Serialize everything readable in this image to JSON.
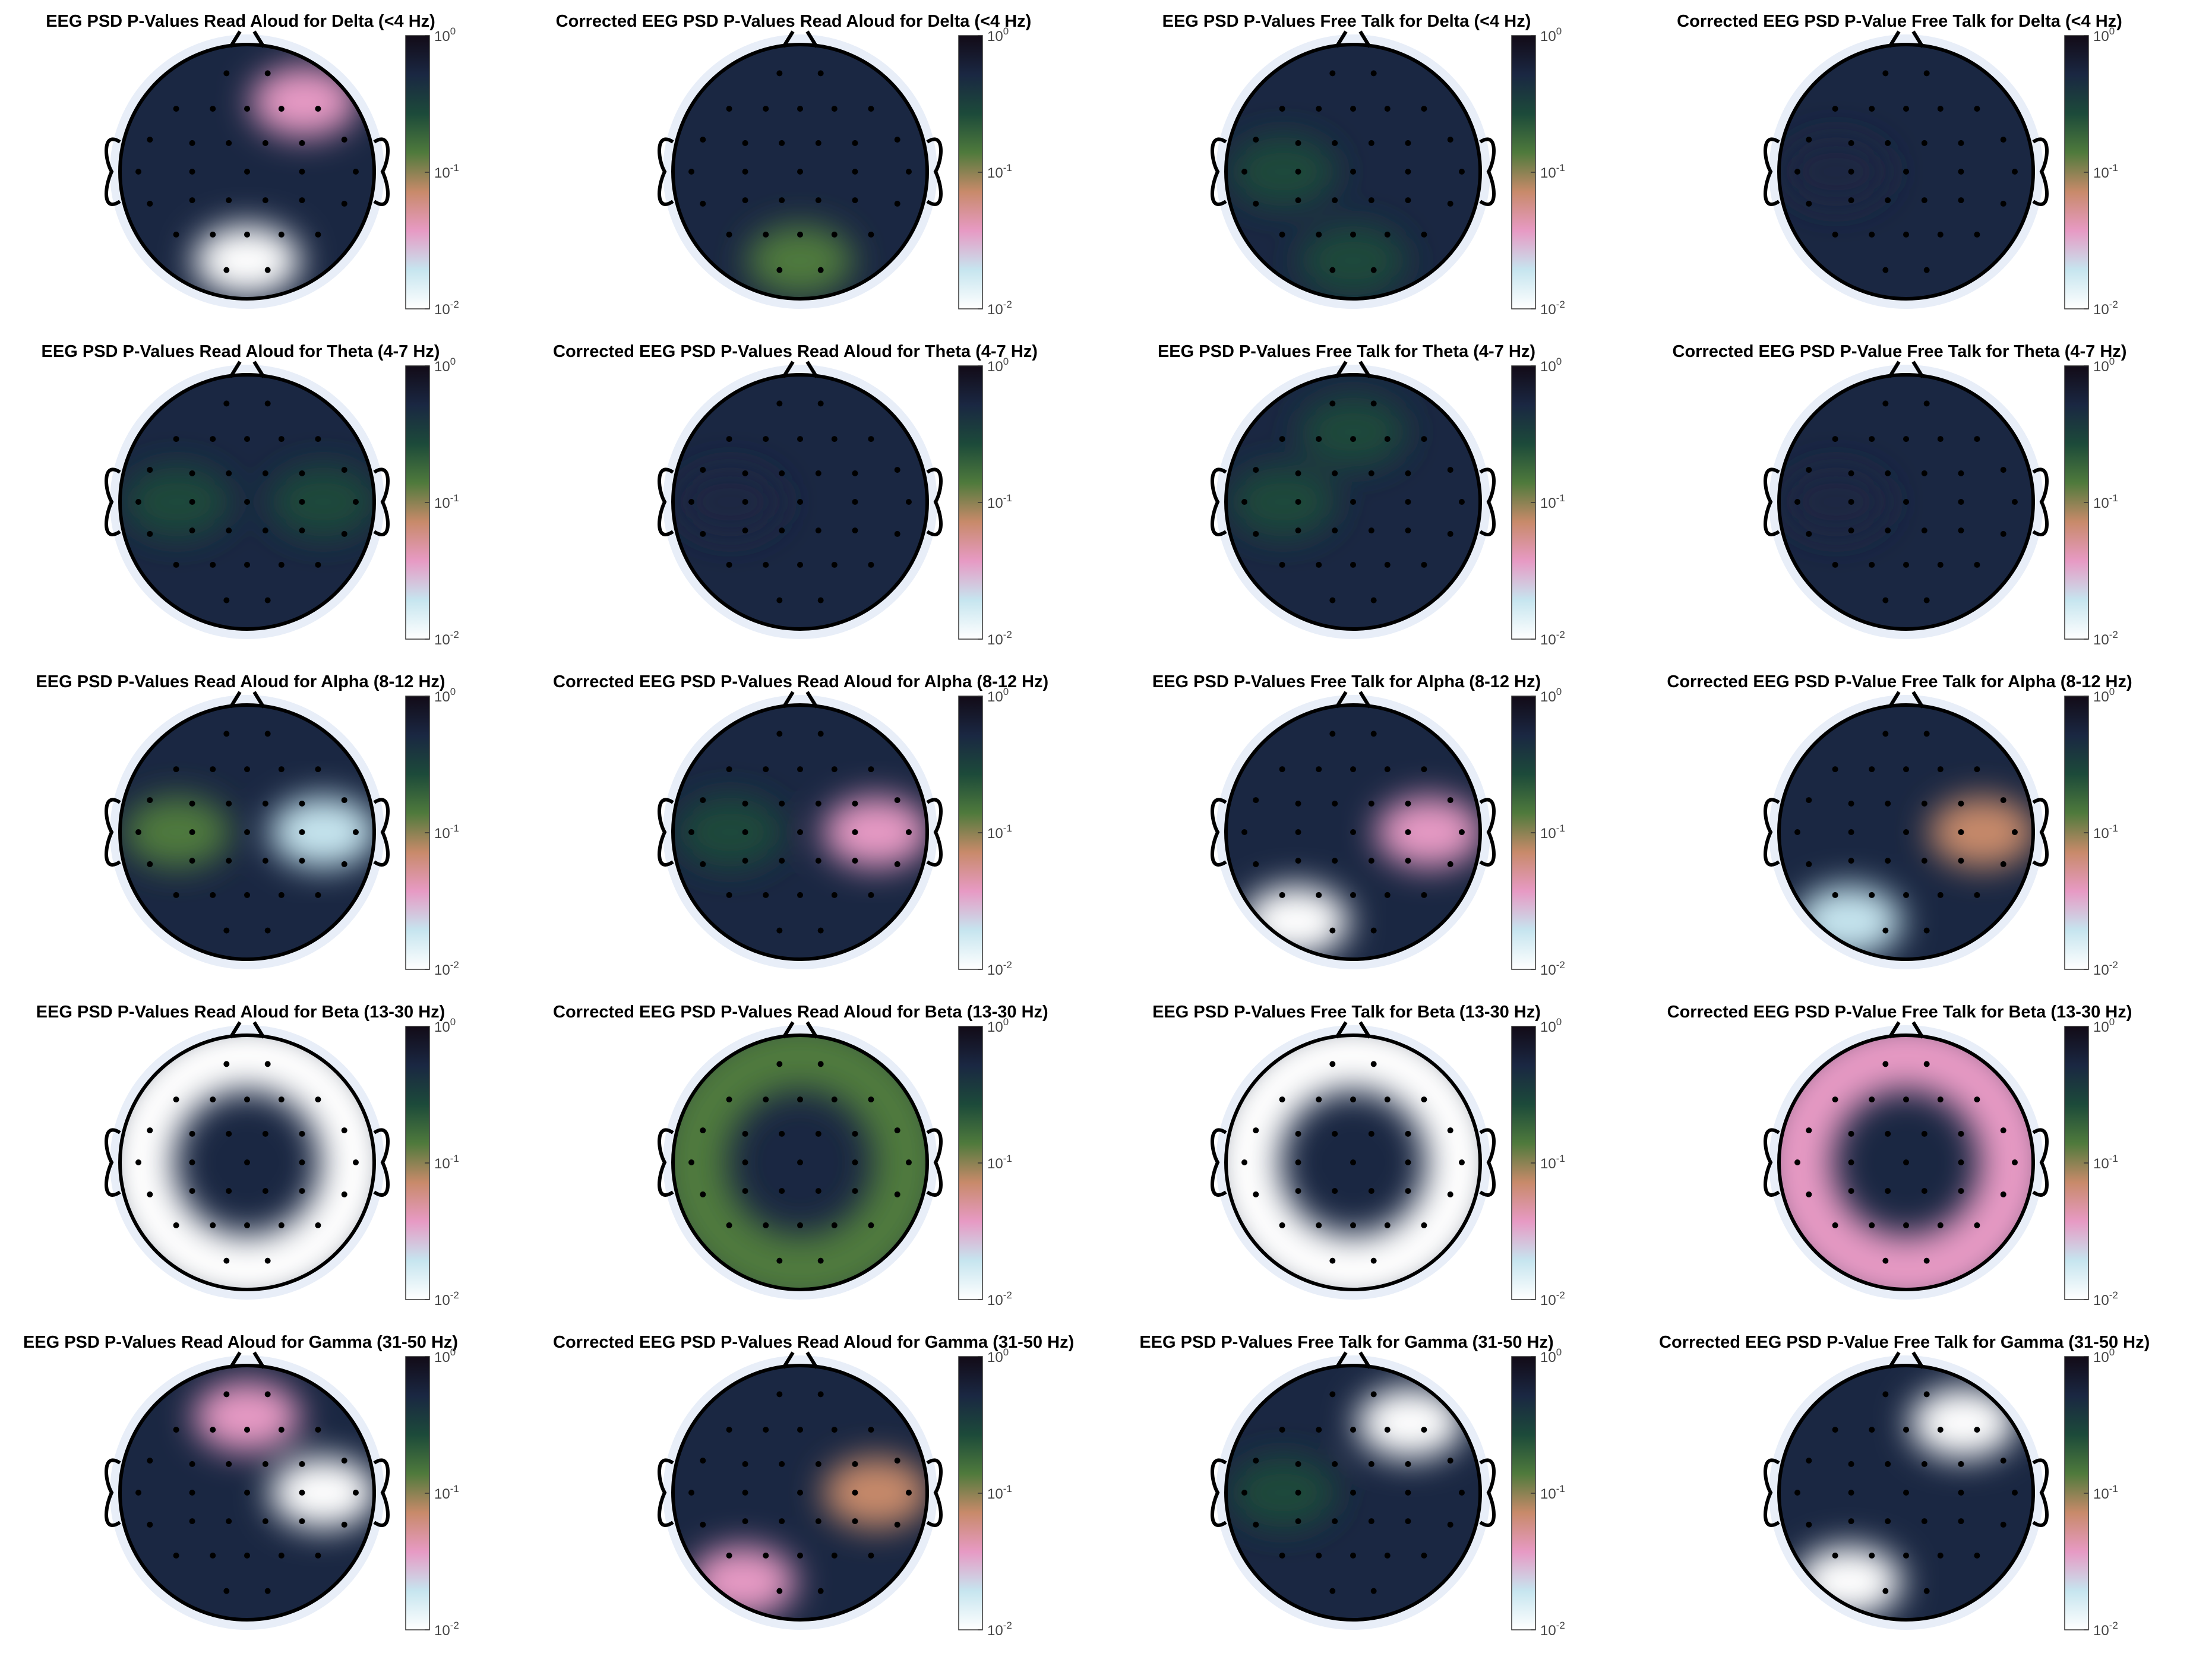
{
  "figure": {
    "colormap": [
      "#ffffff",
      "#c6e5ef",
      "#e79ac4",
      "#c88a6a",
      "#4f7a3c",
      "#1c4a3a",
      "#1a2742",
      "#120b17"
    ],
    "head_outline_color": "#000000",
    "electrode_color": "#000000",
    "colorbar": {
      "scale": "log",
      "range": [
        0.01,
        1
      ],
      "ticks": [
        {
          "base": "10",
          "exp": "0"
        },
        {
          "base": "10",
          "exp": "-1"
        },
        {
          "base": "10",
          "exp": "-2"
        }
      ]
    }
  },
  "chart_data": [
    {
      "type": "heatmap",
      "title": "EEG PSD P-Values Read Aloud for Delta (<4 Hz)",
      "blobs": [
        {
          "pos": "bottom-center",
          "level": 0.01
        },
        {
          "pos": "top-right",
          "level": 0.03
        }
      ]
    },
    {
      "type": "heatmap",
      "title": "Corrected EEG PSD P-Values Read Aloud for Delta (<4 Hz)",
      "blobs": [
        {
          "pos": "bottom-center",
          "level": 0.12
        }
      ]
    },
    {
      "type": "heatmap",
      "title": "EEG PSD P-Values Free Talk for Delta (<4 Hz)",
      "blobs": [
        {
          "pos": "left",
          "level": 0.2
        },
        {
          "pos": "bottom-center",
          "level": 0.35
        }
      ]
    },
    {
      "type": "heatmap",
      "title": "Corrected EEG PSD P-Value Free Talk for Delta (<4 Hz)",
      "blobs": [
        {
          "pos": "left",
          "level": 0.6
        }
      ]
    },
    {
      "type": "heatmap",
      "title": "EEG PSD P-Values Read Aloud for Theta (4-7 Hz)",
      "blobs": [
        {
          "pos": "left",
          "level": 0.2
        },
        {
          "pos": "right",
          "level": 0.25
        }
      ]
    },
    {
      "type": "heatmap",
      "title": "Corrected EEG PSD P-Values Read Aloud for Theta (4-7 Hz)",
      "blobs": [
        {
          "pos": "left",
          "level": 0.45
        }
      ]
    },
    {
      "type": "heatmap",
      "title": "EEG PSD P-Values Free Talk for Theta (4-7 Hz)",
      "blobs": [
        {
          "pos": "left",
          "level": 0.25
        },
        {
          "pos": "top-center",
          "level": 0.35
        }
      ]
    },
    {
      "type": "heatmap",
      "title": "Corrected EEG PSD P-Value Free Talk for Theta (4-7 Hz)",
      "blobs": [
        {
          "pos": "left",
          "level": 0.6
        }
      ]
    },
    {
      "type": "heatmap",
      "title": "EEG PSD P-Values Read Aloud for Alpha (8-12 Hz)",
      "blobs": [
        {
          "pos": "left",
          "level": 0.12
        },
        {
          "pos": "right",
          "level": 0.02
        }
      ]
    },
    {
      "type": "heatmap",
      "title": "Corrected EEG PSD P-Values Read Aloud for Alpha (8-12 Hz)",
      "blobs": [
        {
          "pos": "left",
          "level": 0.3
        },
        {
          "pos": "right",
          "level": 0.05
        }
      ]
    },
    {
      "type": "heatmap",
      "title": "EEG PSD P-Values Free Talk for Alpha (8-12 Hz)",
      "blobs": [
        {
          "pos": "bottom-left",
          "level": 0.01
        },
        {
          "pos": "right",
          "level": 0.05
        }
      ]
    },
    {
      "type": "heatmap",
      "title": "Corrected EEG PSD P-Value Free Talk for Alpha (8-12 Hz)",
      "blobs": [
        {
          "pos": "bottom-left",
          "level": 0.02
        },
        {
          "pos": "right",
          "level": 0.08
        }
      ]
    },
    {
      "type": "heatmap",
      "title": "EEG PSD P-Values Read Aloud for Beta (13-30 Hz)",
      "blobs": [
        {
          "pos": "periphery",
          "level": 0.01
        }
      ]
    },
    {
      "type": "heatmap",
      "title": "Corrected EEG PSD P-Values Read Aloud for Beta (13-30 Hz)",
      "blobs": [
        {
          "pos": "periphery",
          "level": 0.1
        }
      ]
    },
    {
      "type": "heatmap",
      "title": "EEG PSD P-Values Free Talk for Beta (13-30 Hz)",
      "blobs": [
        {
          "pos": "periphery",
          "level": 0.01
        }
      ]
    },
    {
      "type": "heatmap",
      "title": "Corrected EEG PSD P-Value Free Talk for Beta (13-30 Hz)",
      "blobs": [
        {
          "pos": "periphery",
          "level": 0.03
        }
      ]
    },
    {
      "type": "heatmap",
      "title": "EEG PSD P-Values Read Aloud for Gamma (31-50 Hz)",
      "blobs": [
        {
          "pos": "right",
          "level": 0.01
        },
        {
          "pos": "top",
          "level": 0.05
        }
      ]
    },
    {
      "type": "heatmap",
      "title": "Corrected EEG PSD P-Values Read Aloud for Gamma (31-50 Hz)",
      "blobs": [
        {
          "pos": "right",
          "level": 0.06
        },
        {
          "pos": "bottom-left",
          "level": 0.04
        }
      ]
    },
    {
      "type": "heatmap",
      "title": "EEG PSD P-Values Free Talk for Gamma (31-50 Hz)",
      "blobs": [
        {
          "pos": "top-right",
          "level": 0.01
        },
        {
          "pos": "left",
          "level": 0.3
        }
      ]
    },
    {
      "type": "heatmap",
      "title": "Corrected EEG PSD P-Value Free Talk for Gamma (31-50 Hz)",
      "blobs": [
        {
          "pos": "top-right",
          "level": 0.01
        },
        {
          "pos": "bottom-left",
          "level": 0.01
        }
      ]
    }
  ]
}
